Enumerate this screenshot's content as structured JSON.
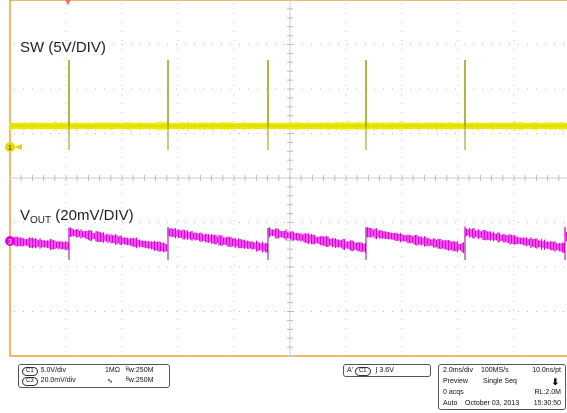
{
  "labels": {
    "sw": "SW (5V/DIV)",
    "vout_main": "V",
    "vout_sub": "OUT",
    "vout_rest": " (20mV/DIV)"
  },
  "markers": {
    "ch1": "1",
    "ch3": "3"
  },
  "channel_panel": {
    "c1_tag": "C1",
    "c1_scale": "5.0V/div",
    "c1_imp": "1MΩ",
    "c1_bw": "ᴮw:250M",
    "c3_tag": "C3",
    "c3_scale": "20.0mV/div",
    "c3_coupling": "∿",
    "c3_bw": "ᴮw:250M"
  },
  "trigger_panel": {
    "tag": "A'",
    "source": "C1",
    "slope": "∫",
    "level": "3.6V"
  },
  "acq_panel": {
    "timebase": "2.0ms/div",
    "samplerate": "100MS/s",
    "resolution": "10.0ns/pt",
    "mode": "Preview",
    "seq": "Single Seq",
    "acqs": "0 acqs",
    "record_length": "RL:2.0M",
    "trigger_mode": "Auto",
    "date": "October 03, 2013",
    "time": "15:30:50"
  },
  "colors": {
    "grid_border": "#f0a030",
    "sw_trace": "#e8e800",
    "vout_trace": "#e000e0",
    "ch1_marker": "#e8d800",
    "ch3_marker": "#e000e0"
  }
}
